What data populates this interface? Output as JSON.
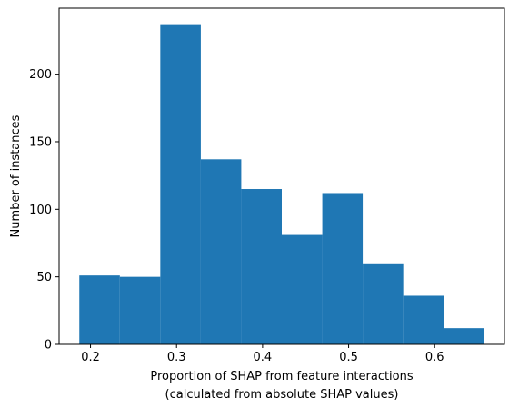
{
  "chart_data": {
    "type": "bar",
    "bins": [
      {
        "x0": 0.187,
        "x1": 0.2341,
        "count": 51
      },
      {
        "x0": 0.2341,
        "x1": 0.2811,
        "count": 50
      },
      {
        "x0": 0.2811,
        "x1": 0.3282,
        "count": 237
      },
      {
        "x0": 0.3282,
        "x1": 0.3752,
        "count": 137
      },
      {
        "x0": 0.3752,
        "x1": 0.4223,
        "count": 115
      },
      {
        "x0": 0.4223,
        "x1": 0.4694,
        "count": 81
      },
      {
        "x0": 0.4694,
        "x1": 0.5164,
        "count": 112
      },
      {
        "x0": 0.5164,
        "x1": 0.5635,
        "count": 60
      },
      {
        "x0": 0.5635,
        "x1": 0.6105,
        "count": 36
      },
      {
        "x0": 0.6105,
        "x1": 0.6576,
        "count": 12
      }
    ],
    "bar_color": "#1f77b4",
    "xlabel_line1": "Proportion of SHAP from feature interactions",
    "xlabel_line2": "(calculated from absolute SHAP values)",
    "ylabel": "Number of instances",
    "xlim": [
      0.1635,
      0.6811
    ],
    "ylim": [
      0,
      248.85
    ],
    "xticks": [
      0.2,
      0.3,
      0.4,
      0.5,
      0.6
    ],
    "xtick_labels": [
      "0.2",
      "0.3",
      "0.4",
      "0.5",
      "0.6"
    ],
    "yticks": [
      0,
      50,
      100,
      150,
      200
    ],
    "ytick_labels": [
      "0",
      "50",
      "100",
      "150",
      "200"
    ],
    "grid": false
  }
}
